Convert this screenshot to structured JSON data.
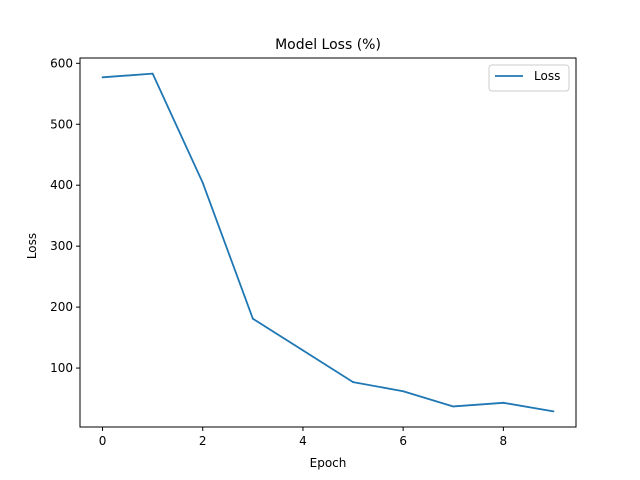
{
  "chart_data": {
    "type": "line",
    "title": "Model Loss (%)",
    "xlabel": "Epoch",
    "ylabel": "Loss",
    "x": [
      0,
      1,
      2,
      3,
      4,
      5,
      6,
      7,
      8,
      9
    ],
    "series": [
      {
        "name": "Loss",
        "color": "#1f77b4",
        "values": [
          577,
          583,
          404,
          181,
          129,
          77,
          62,
          37,
          43,
          29
        ]
      }
    ],
    "xlim": [
      -0.45,
      9.45
    ],
    "ylim": [
      3.3,
      608.7
    ],
    "xticks": [
      0,
      2,
      4,
      6,
      8
    ],
    "yticks": [
      100,
      200,
      300,
      400,
      500,
      600
    ],
    "grid": false,
    "legend_position": "top-right"
  }
}
